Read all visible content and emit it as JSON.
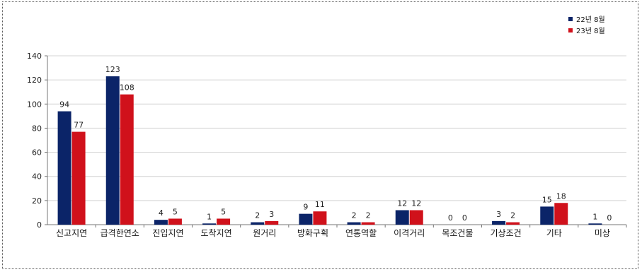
{
  "chart_data": {
    "type": "bar",
    "categories": [
      "신고지연",
      "급격한연소",
      "진입지연",
      "도착지연",
      "원거리",
      "방화구획",
      "연통역할",
      "이격거리",
      "목조건물",
      "기상조건",
      "기타",
      "미상"
    ],
    "series": [
      {
        "name": "22년 8월",
        "values": [
          94,
          123,
          4,
          1,
          2,
          9,
          2,
          12,
          0,
          3,
          15,
          1
        ],
        "color": "#0b2468"
      },
      {
        "name": "23년 8월",
        "values": [
          77,
          108,
          5,
          5,
          3,
          11,
          2,
          12,
          0,
          2,
          18,
          0
        ],
        "color": "#d0111b"
      }
    ],
    "ylim": [
      0,
      140
    ],
    "yticks": [
      0,
      20,
      40,
      60,
      80,
      100,
      120,
      140
    ],
    "grid": true,
    "legend": "top-right",
    "title": "",
    "xlabel": "",
    "ylabel": ""
  }
}
